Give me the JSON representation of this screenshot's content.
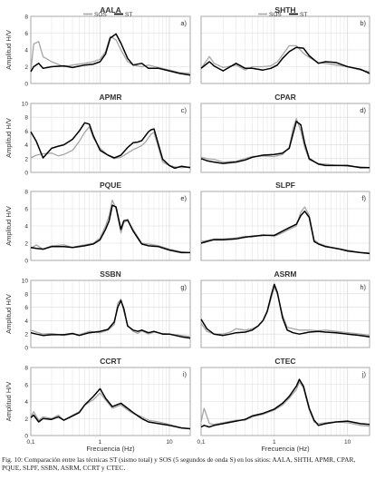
{
  "caption": "Fig. 10: Comparación entre las técnicas ST (sismo total) y SOS (5 segundos de onda S) en los sitios: AALA, SHTH, APMR, CPAR, PQUE, SLPF, SSBN, ASRM, CCRT y CTEC.",
  "colors": {
    "SOS": "#a6a6a6",
    "ST": "#000000",
    "grid": "#d9d9d9",
    "axis": "#999999",
    "text": "#333333"
  },
  "chart_data": [
    {
      "type": "line",
      "title": "AALA",
      "panel_label": "a)",
      "legend": [
        "SOS",
        "ST"
      ],
      "ylabel": "Amplitud H/V",
      "ylim": [
        0,
        8
      ],
      "yticks": [
        0,
        2,
        4,
        6,
        8
      ],
      "xlabel": "",
      "xscale": "log",
      "xlim": [
        0.1,
        20
      ],
      "xticks": [],
      "grid": true,
      "x": [
        0.1,
        0.11,
        0.13,
        0.15,
        0.2,
        0.3,
        0.4,
        0.6,
        0.8,
        1.0,
        1.2,
        1.4,
        1.7,
        2.0,
        2.5,
        3,
        4,
        5,
        7,
        10,
        14,
        20
      ],
      "series": [
        {
          "name": "SOS",
          "values": [
            1.5,
            4.7,
            5.0,
            3.2,
            2.6,
            2.0,
            2.2,
            2.4,
            2.6,
            2.9,
            3.8,
            5.6,
            5.2,
            4.0,
            2.6,
            2.2,
            2.0,
            2.2,
            1.9,
            1.6,
            1.3,
            1.2
          ]
        },
        {
          "name": "ST",
          "values": [
            1.4,
            2.0,
            2.4,
            1.8,
            2.0,
            2.1,
            1.9,
            2.2,
            2.3,
            2.6,
            3.5,
            5.4,
            5.9,
            4.8,
            3.0,
            2.2,
            2.4,
            1.8,
            1.8,
            1.5,
            1.2,
            1.0
          ]
        }
      ]
    },
    {
      "type": "line",
      "title": "SHTH",
      "panel_label": "b)",
      "legend": [
        "SOS",
        "ST"
      ],
      "ylabel": "",
      "ylim": [
        0,
        8
      ],
      "yticks": [],
      "xlabel": "",
      "xscale": "log",
      "xlim": [
        0.1,
        20
      ],
      "xticks": [],
      "grid": true,
      "x": [
        0.1,
        0.13,
        0.15,
        0.2,
        0.3,
        0.4,
        0.5,
        0.7,
        0.9,
        1.1,
        1.3,
        1.6,
        2.0,
        2.5,
        3,
        4,
        5,
        7,
        10,
        15,
        20
      ],
      "series": [
        {
          "name": "SOS",
          "values": [
            1.8,
            3.2,
            2.4,
            1.9,
            2.2,
            1.6,
            2.0,
            2.0,
            2.1,
            2.6,
            3.4,
            4.5,
            4.5,
            3.6,
            3.1,
            2.5,
            2.4,
            2.2,
            2.0,
            1.6,
            1.4
          ]
        },
        {
          "name": "ST",
          "values": [
            1.8,
            2.6,
            2.1,
            1.5,
            2.4,
            1.8,
            1.8,
            1.6,
            1.8,
            2.2,
            3.0,
            3.8,
            4.3,
            4.2,
            3.3,
            2.4,
            2.6,
            2.5,
            2.0,
            1.7,
            1.2
          ]
        }
      ]
    },
    {
      "type": "line",
      "title": "APMR",
      "panel_label": "c)",
      "ylabel": "Amplitud H/V",
      "ylim": [
        0,
        10
      ],
      "yticks": [
        0,
        2,
        4,
        6,
        8,
        10
      ],
      "xlabel": "",
      "xscale": "log",
      "xlim": [
        0.1,
        20
      ],
      "xticks": [],
      "grid": true,
      "x": [
        0.1,
        0.12,
        0.15,
        0.2,
        0.25,
        0.3,
        0.4,
        0.5,
        0.6,
        0.7,
        0.8,
        1.0,
        1.3,
        1.6,
        2.0,
        2.5,
        3.0,
        3.5,
        4.0,
        4.5,
        5.0,
        5.5,
        6,
        8,
        10,
        12,
        15,
        20
      ],
      "series": [
        {
          "name": "SOS",
          "values": [
            2.1,
            2.5,
            2.7,
            2.8,
            2.4,
            2.6,
            3.2,
            4.5,
            5.8,
            6.6,
            5.0,
            3.5,
            2.5,
            2.0,
            2.2,
            2.8,
            3.3,
            3.6,
            3.9,
            4.4,
            5.0,
            5.6,
            5.8,
            1.5,
            1.0,
            0.8,
            0.7,
            0.8
          ]
        },
        {
          "name": "ST",
          "values": [
            5.9,
            4.5,
            2.1,
            3.5,
            3.8,
            4.0,
            4.8,
            6.0,
            7.2,
            7.0,
            5.3,
            3.2,
            2.5,
            2.1,
            2.5,
            3.6,
            4.3,
            4.4,
            4.6,
            5.3,
            5.9,
            6.2,
            6.3,
            1.9,
            1.0,
            0.6,
            0.9,
            0.7
          ]
        }
      ]
    },
    {
      "type": "line",
      "title": "CPAR",
      "panel_label": "d)",
      "ylabel": "",
      "ylim": [
        0,
        10
      ],
      "yticks": [],
      "xlabel": "",
      "xscale": "log",
      "xlim": [
        0.1,
        20
      ],
      "xticks": [],
      "grid": true,
      "x": [
        0.1,
        0.12,
        0.15,
        0.2,
        0.3,
        0.4,
        0.5,
        0.7,
        1.0,
        1.3,
        1.6,
        1.8,
        2.0,
        2.3,
        2.6,
        3.0,
        4.0,
        5.0,
        6.0,
        8.0,
        10,
        15,
        20
      ],
      "series": [
        {
          "name": "SOS",
          "values": [
            2.2,
            2.0,
            1.9,
            1.5,
            1.6,
            2.0,
            2.3,
            2.4,
            2.3,
            2.6,
            3.6,
            6.4,
            7.8,
            6.0,
            3.6,
            1.8,
            1.3,
            1.2,
            1.1,
            1.0,
            0.9,
            0.8,
            0.7
          ]
        },
        {
          "name": "ST",
          "values": [
            2.0,
            1.7,
            1.5,
            1.3,
            1.5,
            1.8,
            2.2,
            2.5,
            2.6,
            2.8,
            3.5,
            5.6,
            7.4,
            6.9,
            4.2,
            2.0,
            1.2,
            1.0,
            1.0,
            1.0,
            1.0,
            0.7,
            0.7
          ]
        }
      ]
    },
    {
      "type": "line",
      "title": "PQUE",
      "panel_label": "e)",
      "ylabel": "Amplitud H/V",
      "ylim": [
        0,
        8
      ],
      "yticks": [
        0,
        2,
        4,
        6,
        8
      ],
      "xlabel": "",
      "xscale": "log",
      "xlim": [
        0.1,
        20
      ],
      "xticks": [],
      "grid": true,
      "x": [
        0.1,
        0.12,
        0.15,
        0.2,
        0.3,
        0.4,
        0.5,
        0.6,
        0.8,
        1.0,
        1.2,
        1.35,
        1.5,
        1.7,
        2.0,
        2.2,
        2.5,
        3.0,
        4.0,
        5.0,
        7.0,
        10,
        15,
        20
      ],
      "series": [
        {
          "name": "SOS",
          "values": [
            1.4,
            1.8,
            1.3,
            1.7,
            1.8,
            1.5,
            1.7,
            1.8,
            2.0,
            2.6,
            4.0,
            5.2,
            7.0,
            6.0,
            3.2,
            4.4,
            4.6,
            3.6,
            2.0,
            1.9,
            1.7,
            1.3,
            1.0,
            0.9
          ]
        },
        {
          "name": "ST",
          "values": [
            1.5,
            1.4,
            1.3,
            1.6,
            1.6,
            1.5,
            1.6,
            1.7,
            1.9,
            2.4,
            3.6,
            4.6,
            6.4,
            6.2,
            3.6,
            4.6,
            4.7,
            3.4,
            1.9,
            1.7,
            1.6,
            1.2,
            0.9,
            0.9
          ]
        }
      ]
    },
    {
      "type": "line",
      "title": "SLPF",
      "panel_label": "f)",
      "ylabel": "",
      "ylim": [
        0,
        8
      ],
      "yticks": [],
      "xlabel": "",
      "xscale": "log",
      "xlim": [
        0.1,
        20
      ],
      "xticks": [],
      "grid": true,
      "x": [
        0.1,
        0.12,
        0.15,
        0.2,
        0.3,
        0.4,
        0.5,
        0.7,
        1.0,
        1.3,
        1.6,
        2.0,
        2.3,
        2.6,
        3.0,
        3.5,
        4.0,
        5.0,
        6.0,
        8.0,
        10,
        15,
        20
      ],
      "series": [
        {
          "name": "SOS",
          "values": [
            2.2,
            2.3,
            2.5,
            2.5,
            2.6,
            2.8,
            2.7,
            3.0,
            2.8,
            3.2,
            3.6,
            4.0,
            5.6,
            6.2,
            5.2,
            2.4,
            2.0,
            1.7,
            1.5,
            1.3,
            1.2,
            0.9,
            0.9
          ]
        },
        {
          "name": "ST",
          "values": [
            2.0,
            2.2,
            2.4,
            2.4,
            2.5,
            2.7,
            2.8,
            2.9,
            2.9,
            3.4,
            3.8,
            4.2,
            5.2,
            5.7,
            5.0,
            2.2,
            1.9,
            1.6,
            1.5,
            1.3,
            1.1,
            0.9,
            0.8
          ]
        }
      ]
    },
    {
      "type": "line",
      "title": "SSBN",
      "panel_label": "g)",
      "ylabel": "Amplitud H/V",
      "ylim": [
        0,
        10
      ],
      "yticks": [
        0,
        2,
        4,
        6,
        8,
        10
      ],
      "xlabel": "",
      "xscale": "log",
      "xlim": [
        0.1,
        20
      ],
      "xticks": [],
      "grid": true,
      "x": [
        0.1,
        0.12,
        0.15,
        0.2,
        0.3,
        0.4,
        0.5,
        0.7,
        1.0,
        1.3,
        1.6,
        1.8,
        2.0,
        2.2,
        2.5,
        3.0,
        3.5,
        4.0,
        5.0,
        6.0,
        8.0,
        10,
        15,
        20
      ],
      "series": [
        {
          "name": "SOS",
          "values": [
            2.6,
            2.3,
            2.0,
            2.1,
            1.8,
            2.0,
            1.9,
            2.4,
            2.2,
            2.6,
            3.4,
            6.6,
            7.2,
            5.4,
            3.3,
            2.4,
            2.1,
            2.5,
            2.0,
            2.3,
            2.1,
            2.0,
            1.8,
            1.6
          ]
        },
        {
          "name": "ST",
          "values": [
            2.2,
            2.0,
            1.8,
            1.9,
            1.9,
            2.1,
            1.8,
            2.2,
            2.4,
            2.7,
            3.8,
            6.0,
            7.0,
            5.8,
            3.2,
            2.6,
            2.4,
            2.6,
            2.2,
            2.4,
            2.0,
            2.0,
            1.6,
            1.4
          ]
        }
      ]
    },
    {
      "type": "line",
      "title": "ASRM",
      "panel_label": "h)",
      "ylabel": "",
      "ylim": [
        0,
        10
      ],
      "yticks": [],
      "xlabel": "",
      "xscale": "log",
      "xlim": [
        0.1,
        20
      ],
      "xticks": [],
      "grid": true,
      "x": [
        0.1,
        0.12,
        0.15,
        0.2,
        0.25,
        0.3,
        0.4,
        0.5,
        0.6,
        0.7,
        0.8,
        0.9,
        1.0,
        1.1,
        1.3,
        1.5,
        1.8,
        2.2,
        3,
        4,
        5,
        7,
        10,
        15,
        20
      ],
      "series": [
        {
          "name": "SOS",
          "values": [
            3.6,
            2.4,
            2.0,
            2.0,
            2.3,
            2.8,
            2.6,
            2.8,
            3.2,
            4.0,
            5.2,
            7.2,
            9.0,
            8.0,
            4.8,
            3.0,
            2.8,
            2.6,
            2.6,
            2.5,
            2.6,
            2.4,
            2.2,
            2.0,
            1.8
          ]
        },
        {
          "name": "ST",
          "values": [
            4.2,
            2.8,
            2.0,
            1.8,
            2.0,
            2.2,
            2.3,
            2.6,
            3.2,
            4.0,
            5.4,
            7.6,
            9.4,
            8.2,
            4.4,
            2.6,
            2.2,
            2.0,
            2.3,
            2.4,
            2.3,
            2.2,
            2.0,
            1.8,
            1.6
          ]
        }
      ]
    },
    {
      "type": "line",
      "title": "CCRT",
      "panel_label": "i)",
      "ylabel": "Amplitud H/V",
      "ylim": [
        0,
        8
      ],
      "yticks": [
        0,
        2,
        4,
        6,
        8
      ],
      "xlabel": "Frecuencia (Hz)",
      "xscale": "log",
      "xlim": [
        0.1,
        20
      ],
      "xticks": [
        0.1,
        1,
        10
      ],
      "xticklabels": [
        "0,1",
        "1",
        "10"
      ],
      "grid": true,
      "x": [
        0.1,
        0.11,
        0.13,
        0.15,
        0.2,
        0.25,
        0.3,
        0.4,
        0.5,
        0.6,
        0.8,
        1.0,
        1.2,
        1.5,
        2.0,
        2.5,
        3.0,
        4.0,
        5.0,
        7.0,
        10,
        15,
        20
      ],
      "series": [
        {
          "name": "SOS",
          "values": [
            2.2,
            2.8,
            1.8,
            2.2,
            2.0,
            2.4,
            1.8,
            2.4,
            2.8,
            3.6,
            4.2,
            5.0,
            4.2,
            3.2,
            3.6,
            3.0,
            2.6,
            2.2,
            1.8,
            1.6,
            1.3,
            0.9,
            0.8
          ]
        },
        {
          "name": "ST",
          "values": [
            2.1,
            2.4,
            1.6,
            2.0,
            1.9,
            2.2,
            1.8,
            2.3,
            2.7,
            3.6,
            4.6,
            5.5,
            4.4,
            3.4,
            3.8,
            3.2,
            2.7,
            2.0,
            1.6,
            1.4,
            1.2,
            0.9,
            0.8
          ]
        }
      ]
    },
    {
      "type": "line",
      "title": "CTEC",
      "panel_label": "j)",
      "ylabel": "",
      "ylim": [
        0,
        8
      ],
      "yticks": [],
      "xlabel": "Frecuencia (Hz)",
      "xscale": "log",
      "xlim": [
        0.1,
        20
      ],
      "xticks": [
        0.1,
        1,
        10
      ],
      "xticklabels": [
        "0,1",
        "1",
        "10"
      ],
      "grid": true,
      "x": [
        0.1,
        0.11,
        0.13,
        0.15,
        0.2,
        0.3,
        0.4,
        0.5,
        0.7,
        1.0,
        1.3,
        1.6,
        2.0,
        2.2,
        2.5,
        3.0,
        3.5,
        4.0,
        5.0,
        7.0,
        10,
        15,
        20
      ],
      "series": [
        {
          "name": "SOS",
          "values": [
            1.6,
            3.2,
            1.4,
            1.3,
            1.5,
            1.8,
            1.8,
            2.2,
            2.5,
            3.0,
            3.6,
            4.4,
            5.4,
            6.3,
            5.6,
            3.0,
            1.6,
            1.4,
            1.5,
            1.6,
            1.5,
            1.2,
            1.1
          ]
        },
        {
          "name": "ST",
          "values": [
            1.0,
            1.2,
            1.0,
            1.2,
            1.4,
            1.7,
            1.9,
            2.3,
            2.6,
            3.1,
            3.8,
            4.6,
            5.8,
            6.6,
            5.8,
            3.2,
            1.8,
            1.2,
            1.4,
            1.6,
            1.7,
            1.4,
            1.3
          ]
        }
      ]
    }
  ]
}
